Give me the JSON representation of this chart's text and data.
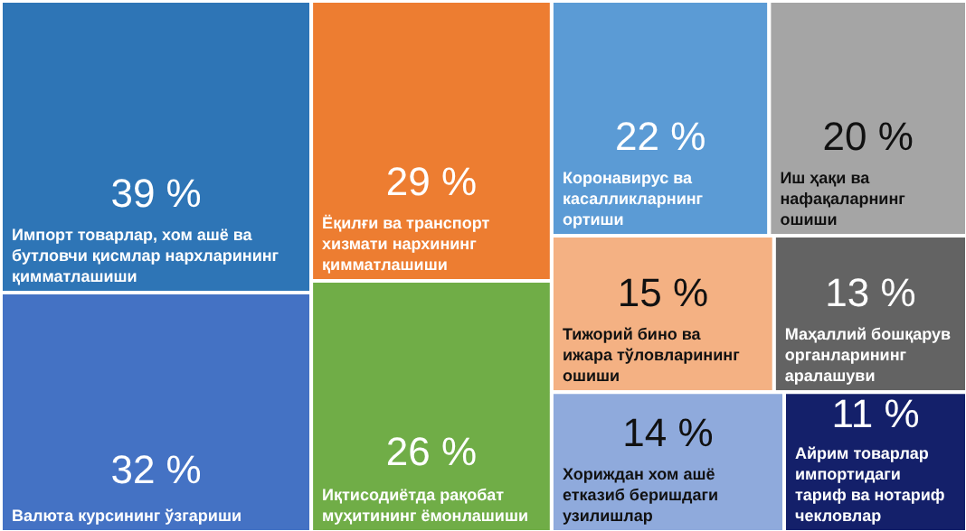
{
  "chart_data": {
    "type": "other",
    "categories": [
      "Импорт товарлар, хом ашё ва бутловчи қисмлар нархларининг қимматлашиши",
      "Валюта курсининг ўзгариши",
      "Ёқилғи ва транспорт хизмати нархининг қимматлашиши",
      "Иқтисодиётда рақобат муҳитининг ёмонлашиши",
      "Коронавирус ва касалликларнинг ортиши",
      "Иш ҳақи ва нафақаларнинг ошиши",
      "Тижорий бино ва ижара тўловларининг ошиши",
      "Маҳаллий бошқарув органларининг аралашуви",
      "Хориждан хом ашё етказиб беришдаги узилишлар",
      "Айрим товарлар импортидаги тариф ва нотариф чекловлар"
    ],
    "values": [
      39,
      32,
      29,
      26,
      22,
      20,
      15,
      13,
      14,
      11
    ],
    "value_labels": [
      "39 %",
      "32 %",
      "29 %",
      "26 %",
      "22 %",
      "20 %",
      "15 %",
      "13 %",
      "14 %",
      "11 %"
    ],
    "colors": [
      "#2e75b6",
      "#4472c4",
      "#ed7d31",
      "#70ad47",
      "#5b9bd5",
      "#a5a5a5",
      "#f4b183",
      "#636363",
      "#8faadc",
      "#14206a"
    ]
  }
}
